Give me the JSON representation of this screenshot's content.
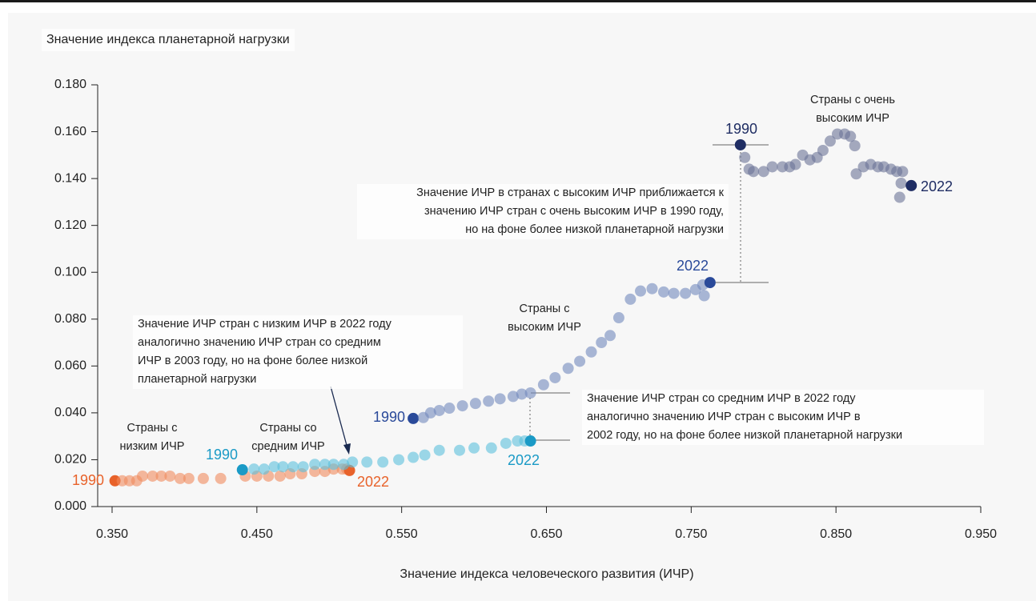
{
  "chart_data": {
    "type": "scatter",
    "title": "Значение индекса планетарной нагрузки",
    "x_label": "Значение индекса человеческого развития (ИЧР)",
    "xlim": [
      0.35,
      0.95
    ],
    "xticks": [
      {
        "value": 0.35,
        "label": "0.350"
      },
      {
        "value": 0.45,
        "label": "0.450"
      },
      {
        "value": 0.55,
        "label": "0.550"
      },
      {
        "value": 0.65,
        "label": "0.650"
      },
      {
        "value": 0.75,
        "label": "0.750"
      },
      {
        "value": 0.85,
        "label": "0.850"
      },
      {
        "value": 0.95,
        "label": "0.950"
      }
    ],
    "ylim": [
      0,
      0.18
    ],
    "yticks": [
      {
        "value": 0,
        "label": "0.000"
      },
      {
        "value": 0.02,
        "label": "0.020"
      },
      {
        "value": 0.04,
        "label": "0.040"
      },
      {
        "value": 0.06,
        "label": "0.060"
      },
      {
        "value": 0.08,
        "label": "0.080"
      },
      {
        "value": 0.1,
        "label": "0.100"
      },
      {
        "value": 0.12,
        "label": "0.120"
      },
      {
        "value": 0.14,
        "label": "0.140"
      },
      {
        "value": 0.16,
        "label": "0.160"
      },
      {
        "value": 0.18,
        "label": "0.180"
      }
    ],
    "series": [
      {
        "name": "Страны с\nнизким ИЧР",
        "color": "#f08a5d",
        "highlight_color": "#e8622a",
        "start_label": "1990",
        "end_label": "2022",
        "x": [
          0.352,
          0.357,
          0.362,
          0.367,
          0.371,
          0.378,
          0.384,
          0.39,
          0.397,
          0.403,
          0.413,
          0.425,
          0.442,
          0.45,
          0.458,
          0.466,
          0.473,
          0.481,
          0.49,
          0.497,
          0.503,
          0.509,
          0.512,
          0.514
        ],
        "values": [
          0.011,
          0.011,
          0.011,
          0.011,
          0.013,
          0.013,
          0.013,
          0.013,
          0.012,
          0.012,
          0.012,
          0.012,
          0.013,
          0.013,
          0.013,
          0.013,
          0.014,
          0.014,
          0.015,
          0.015,
          0.016,
          0.016,
          0.016,
          0.0154
        ]
      },
      {
        "name": "Страны со\nсредним ИЧР",
        "color": "#5bbfdc",
        "highlight_color": "#1a9ac6",
        "start_label": "1990",
        "end_label": "2022",
        "x": [
          0.44,
          0.448,
          0.455,
          0.462,
          0.468,
          0.475,
          0.482,
          0.49,
          0.497,
          0.503,
          0.51,
          0.516,
          0.526,
          0.537,
          0.548,
          0.558,
          0.566,
          0.576,
          0.59,
          0.6,
          0.612,
          0.622,
          0.63,
          0.635,
          0.639
        ],
        "values": [
          0.0157,
          0.016,
          0.016,
          0.017,
          0.017,
          0.017,
          0.017,
          0.018,
          0.018,
          0.018,
          0.018,
          0.019,
          0.019,
          0.019,
          0.02,
          0.021,
          0.022,
          0.024,
          0.024,
          0.025,
          0.025,
          0.027,
          0.028,
          0.028,
          0.028
        ]
      },
      {
        "name": "Страны с\nвысоким ИЧР",
        "color": "#7189bd",
        "highlight_color": "#2a4a9a",
        "start_label": "1990",
        "end_label": "2022",
        "x": [
          0.558,
          0.565,
          0.57,
          0.576,
          0.583,
          0.592,
          0.601,
          0.61,
          0.618,
          0.627,
          0.633,
          0.639,
          0.648,
          0.656,
          0.665,
          0.673,
          0.681,
          0.688,
          0.694,
          0.7,
          0.708,
          0.715,
          0.723,
          0.731,
          0.738,
          0.746,
          0.753,
          0.758,
          0.759,
          0.763
        ],
        "values": [
          0.0376,
          0.038,
          0.04,
          0.041,
          0.042,
          0.043,
          0.044,
          0.045,
          0.046,
          0.047,
          0.048,
          0.0485,
          0.052,
          0.055,
          0.059,
          0.062,
          0.066,
          0.07,
          0.073,
          0.0806,
          0.0885,
          0.092,
          0.093,
          0.0916,
          0.091,
          0.091,
          0.0926,
          0.0946,
          0.09,
          0.0956
        ]
      },
      {
        "name": "Страны с очень\nвысоким ИЧР",
        "color": "#6b7396",
        "highlight_color": "#1f2d63",
        "start_label": "1990",
        "end_label": "2022",
        "x": [
          0.784,
          0.787,
          0.79,
          0.793,
          0.8,
          0.806,
          0.813,
          0.818,
          0.822,
          0.827,
          0.832,
          0.837,
          0.841,
          0.846,
          0.851,
          0.856,
          0.86,
          0.863,
          0.864,
          0.869,
          0.874,
          0.879,
          0.883,
          0.888,
          0.892,
          0.896,
          0.894,
          0.895,
          0.902
        ],
        "values": [
          0.1544,
          0.149,
          0.144,
          0.143,
          0.143,
          0.145,
          0.145,
          0.145,
          0.146,
          0.15,
          0.148,
          0.149,
          0.152,
          0.156,
          0.159,
          0.159,
          0.158,
          0.154,
          0.142,
          0.145,
          0.146,
          0.145,
          0.145,
          0.144,
          0.143,
          0.143,
          0.132,
          0.138,
          0.137
        ]
      }
    ],
    "annotations": [
      "Значение ИЧР в странах с высоким ИЧР приближается к\nзначению ИЧР стран с очень высоким ИЧР в 1990 году,\nно на фоне более низкой планетарной нагрузки",
      "Значение ИЧР стран с низким ИЧР в 2022 году\nаналогично значению ИЧР стран со средним\nИЧР в 2003 году, но на фоне более низкой\nпланетарной нагрузки",
      "Значение ИЧР стран со средним ИЧР в 2022 году\nаналогично значению ИЧР стран с высоким ИЧР в\n2002 году, но на фоне более низкой планетарной нагрузки"
    ]
  }
}
